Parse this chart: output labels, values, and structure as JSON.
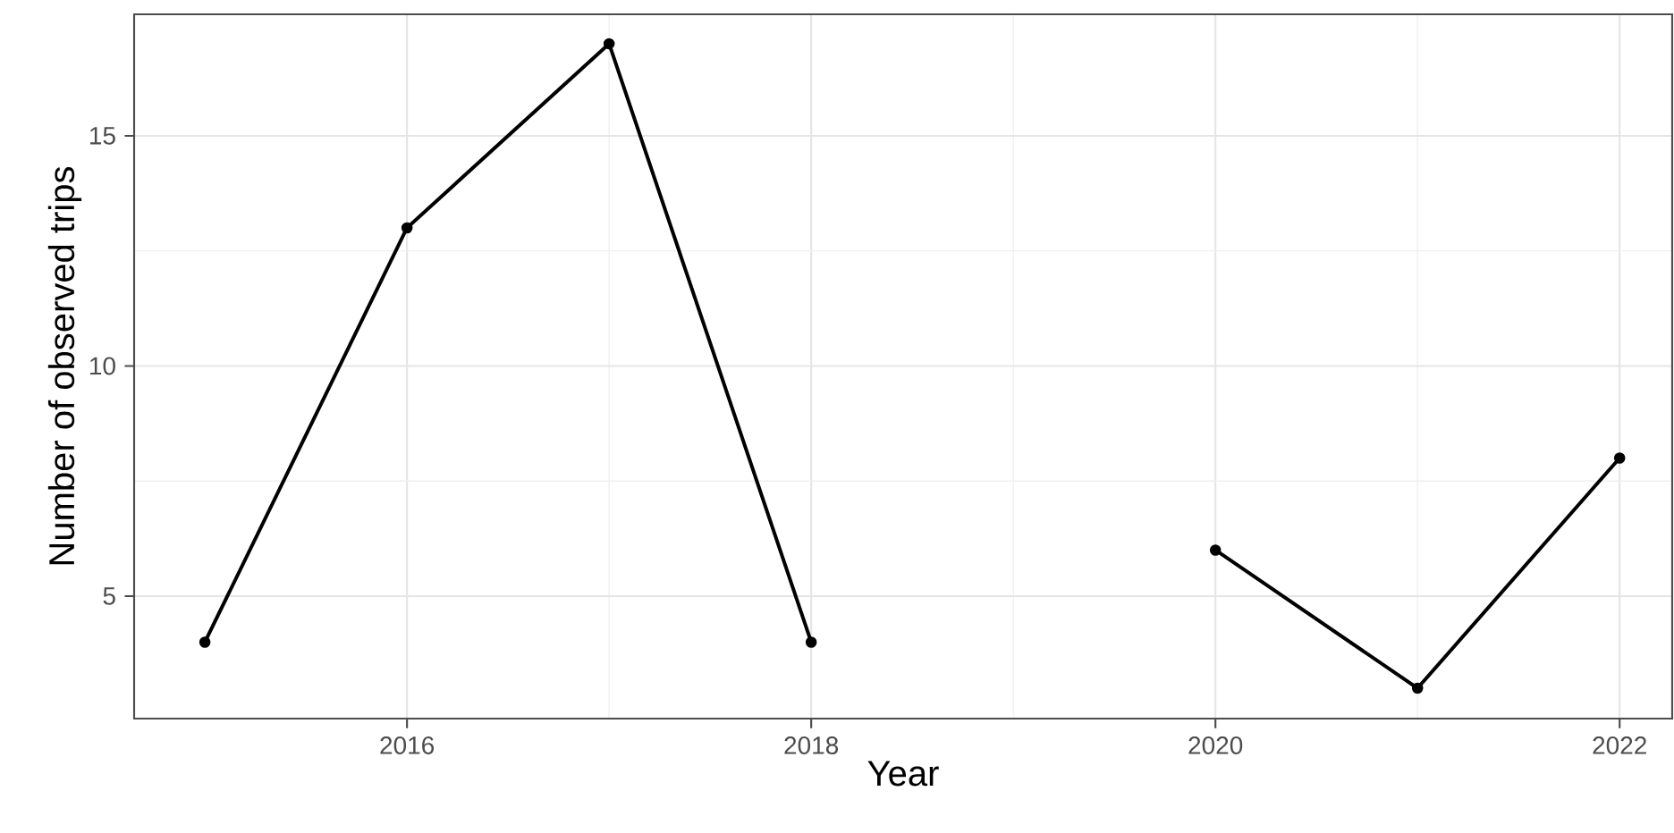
{
  "chart_data": {
    "type": "line",
    "xlabel": "Year",
    "ylabel": "Number of observed trips",
    "x": [
      2015,
      2016,
      2017,
      2018,
      2019,
      2020,
      2021,
      2022
    ],
    "series": [
      {
        "color": "#000000",
        "values": [
          4,
          13,
          17,
          4,
          null,
          6,
          3,
          8
        ]
      }
    ],
    "xlim": [
      2014.65,
      2022.26
    ],
    "ylim": [
      2.34,
      17.64
    ],
    "xticks": [
      2016,
      2018,
      2020,
      2022
    ],
    "yticks": [
      5,
      10,
      15
    ],
    "grid": true,
    "marker": "circle",
    "line_style": "solid"
  }
}
